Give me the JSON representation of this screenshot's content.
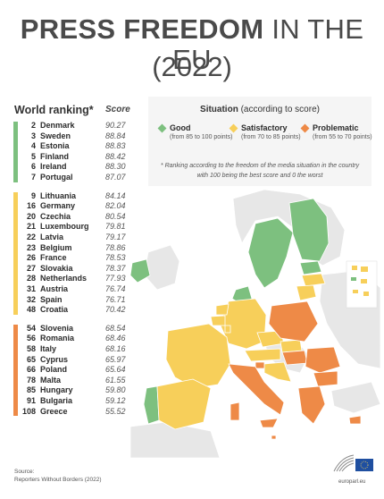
{
  "title": {
    "bold": "PRESS FREEDOM",
    "light": "IN THE EU",
    "year": "(2022)"
  },
  "table": {
    "heading": "World ranking*",
    "score_heading": "Score"
  },
  "legend": {
    "title_bold": "Situation",
    "title_light": "(according to score)",
    "items": [
      {
        "name": "Good",
        "range": "(from 85 to 100 points)",
        "color": "#7dc07f"
      },
      {
        "name": "Satisfactory",
        "range": "(from 70 to 85 points)",
        "color": "#f7cf5a"
      },
      {
        "name": "Problematic",
        "range": "(from 55 to 70 points)",
        "color": "#ee8a47"
      }
    ],
    "note": "* Ranking according to the freedom of the media situation in the country with 100 being the best score and 0 the worst"
  },
  "chart_data": {
    "type": "table",
    "columns": [
      "World ranking*",
      "Score"
    ],
    "groups": [
      {
        "name": "Good",
        "color": "#7dc07f",
        "rows": [
          {
            "rank": "2",
            "country": "Denmark",
            "score": "90.27"
          },
          {
            "rank": "3",
            "country": "Sweden",
            "score": "88.84"
          },
          {
            "rank": "4",
            "country": "Estonia",
            "score": "88.83"
          },
          {
            "rank": "5",
            "country": "Finland",
            "score": "88.42"
          },
          {
            "rank": "6",
            "country": "Ireland",
            "score": "88.30"
          },
          {
            "rank": "7",
            "country": "Portugal",
            "score": "87.07"
          }
        ]
      },
      {
        "name": "Satisfactory",
        "color": "#f7cf5a",
        "rows": [
          {
            "rank": "9",
            "country": "Lithuania",
            "score": "84.14"
          },
          {
            "rank": "16",
            "country": "Germany",
            "score": "82.04"
          },
          {
            "rank": "20",
            "country": "Czechia",
            "score": "80.54"
          },
          {
            "rank": "21",
            "country": "Luxembourg",
            "score": "79.81"
          },
          {
            "rank": "22",
            "country": "Latvia",
            "score": "79.17"
          },
          {
            "rank": "23",
            "country": "Belgium",
            "score": "78.86"
          },
          {
            "rank": "26",
            "country": "France",
            "score": "78.53"
          },
          {
            "rank": "27",
            "country": "Slovakia",
            "score": "78.37"
          },
          {
            "rank": "28",
            "country": "Netherlands",
            "score": "77.93"
          },
          {
            "rank": "31",
            "country": "Austria",
            "score": "76.74"
          },
          {
            "rank": "32",
            "country": "Spain",
            "score": "76.71"
          },
          {
            "rank": "48",
            "country": "Croatia",
            "score": "70.42"
          }
        ]
      },
      {
        "name": "Problematic",
        "color": "#ee8a47",
        "rows": [
          {
            "rank": "54",
            "country": "Slovenia",
            "score": "68.54"
          },
          {
            "rank": "56",
            "country": "Romania",
            "score": "68.46"
          },
          {
            "rank": "58",
            "country": "Italy",
            "score": "68.16"
          },
          {
            "rank": "65",
            "country": "Cyprus",
            "score": "65.97"
          },
          {
            "rank": "66",
            "country": "Poland",
            "score": "65.64"
          },
          {
            "rank": "78",
            "country": "Malta",
            "score": "61.55"
          },
          {
            "rank": "85",
            "country": "Hungary",
            "score": "59.80"
          },
          {
            "rank": "91",
            "country": "Bulgaria",
            "score": "59.12"
          },
          {
            "rank": "108",
            "country": "Greece",
            "score": "55.52"
          }
        ]
      }
    ]
  },
  "map": {
    "non_eu_color": "#e7e7e7",
    "border_color": "#ffffff"
  },
  "source": {
    "label": "Source:",
    "text": "Reporters Without Borders (2022)"
  },
  "logo": {
    "text": "europarl.eu",
    "icon": "european-parliament-logo-icon"
  }
}
